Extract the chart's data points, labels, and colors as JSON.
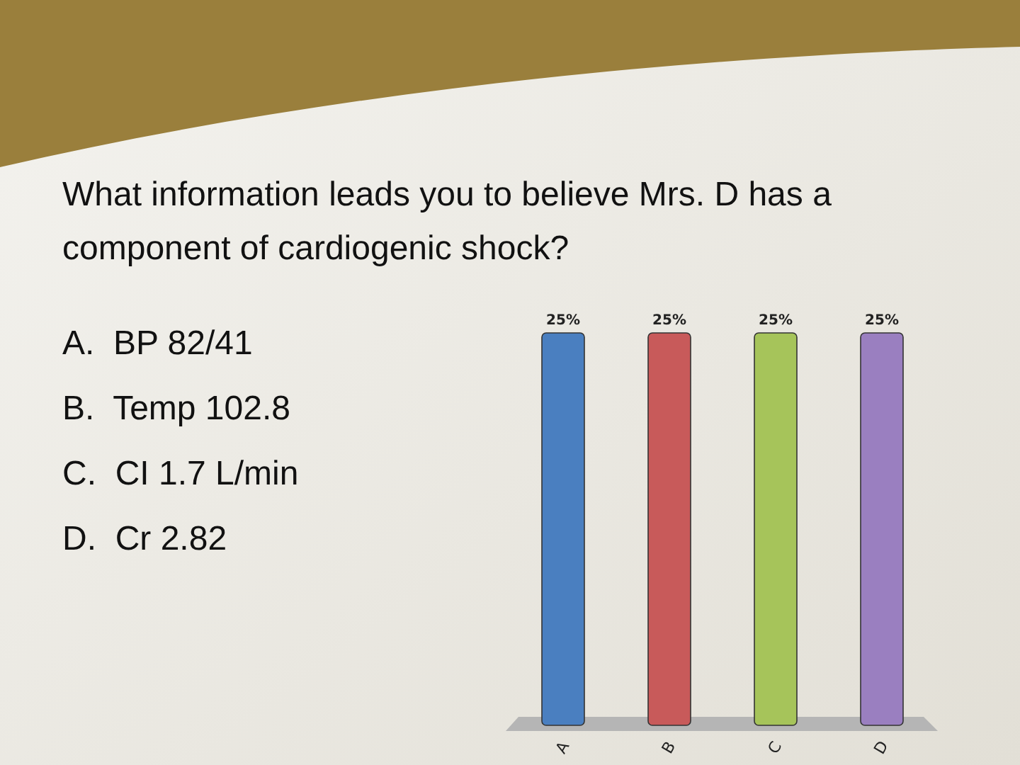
{
  "chart_data": {
    "type": "bar",
    "title": "What information leads you to believe Mrs. D has a component of cardiogenic shock?",
    "annotations": [
      "A.  BP 82/41",
      "B.  Temp 102.8",
      "C.  CI 1.7 L/min",
      "D.  Cr 2.82"
    ],
    "categories": [
      "A",
      "B",
      "C",
      "D"
    ],
    "values": [
      25,
      25,
      25,
      25
    ],
    "colors": [
      "#4a7fc0",
      "#c85a5a",
      "#a6c45a",
      "#9a7fc0"
    ],
    "value_labels": [
      "25%",
      "25%",
      "25%",
      "25%"
    ]
  }
}
